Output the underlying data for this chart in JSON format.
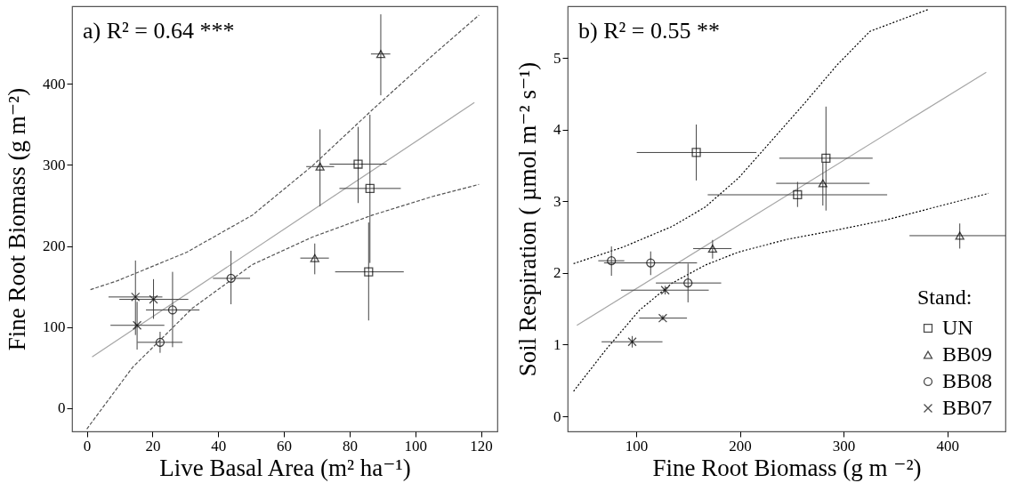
{
  "chart_data": [
    {
      "type": "scatter",
      "xlabel": "Live Basal Area (m² ha⁻¹)",
      "ylabel": "Fine Root Biomass (g m⁻²)",
      "annotations": [
        "a)  R² = 0.64 ***"
      ],
      "xlim": [
        -4.5,
        125
      ],
      "ylim": [
        -29,
        496
      ],
      "xticks": [
        0,
        20,
        40,
        60,
        80,
        100,
        120
      ],
      "yticks": [
        0,
        100,
        200,
        300,
        400
      ],
      "legend": false,
      "series": [
        {
          "marker": "square",
          "color": "#000000",
          "x": [
            82.6,
            86.2,
            85.8
          ],
          "values": [
            301,
            271,
            168
          ],
          "errors": [
            [
              253,
              347
            ],
            [
              179,
              362
            ],
            [
              108,
              229
            ]
          ],
          "xerrors": [
            [
              73.9,
              91.3
            ],
            [
              76.9,
              95.6
            ],
            [
              75.6,
              96.5
            ]
          ]
        },
        {
          "marker": "triangle",
          "color": "#000000",
          "x": [
            89.5,
            71.0,
            69.4
          ],
          "values": [
            437,
            298,
            185
          ],
          "errors": [
            [
              386,
              486
            ],
            [
              249,
              344
            ],
            [
              165,
              203
            ]
          ],
          "xerrors": [
            [
              86.5,
              92.4
            ],
            [
              66.8,
              75.3
            ],
            [
              65.0,
              73.7
            ]
          ]
        },
        {
          "marker": "circle",
          "color": "#000000",
          "x": [
            43.9,
            26.1,
            22.3
          ],
          "values": [
            160,
            121,
            81
          ],
          "errors": [
            [
              128,
              194
            ],
            [
              75,
              168
            ],
            [
              68,
              94
            ]
          ],
          "xerrors": [
            [
              38.4,
              49.7
            ],
            [
              18.0,
              34.3
            ],
            [
              15.4,
              29.1
            ]
          ]
        },
        {
          "marker": "cross",
          "color": "#000000",
          "x": [
            14.8,
            20.3,
            15.3
          ],
          "values": [
            137,
            134,
            102
          ],
          "errors": [
            [
              90,
              182
            ],
            [
              110,
              159
            ],
            [
              72,
              131
            ]
          ],
          "xerrors": [
            [
              6.6,
              23.0
            ],
            [
              9.9,
              30.9
            ],
            [
              7.2,
              23.6
            ]
          ]
        },
        {
          "type": "line",
          "color": "#a6a6a6",
          "line_style": "solid",
          "x": [
            1.6,
            118
          ],
          "values": [
            63,
            377
          ]
        },
        {
          "type": "line",
          "color": "#555555",
          "line_style": "dashed",
          "x": [
            1.1,
            9.3,
            30.3,
            50.4,
            68.7,
            86.9,
            105.2,
            119.4
          ],
          "values": [
            146,
            157,
            192,
            238,
            299,
            368,
            435,
            485
          ]
        },
        {
          "type": "line",
          "color": "#555555",
          "line_style": "dashed",
          "x": [
            0,
            13.9,
            32.1,
            50.4,
            68.7,
            86.9,
            105.2,
            119.4
          ],
          "values": [
            -26,
            50,
            123,
            177,
            211,
            238,
            261,
            276
          ]
        }
      ]
    },
    {
      "type": "scatter",
      "xlabel": "Fine Root Biomass (g m ⁻²)",
      "ylabel": "Soil Respiration ( µmol m⁻² s⁻¹)",
      "annotations": [
        "b)  R² = 0.55 **"
      ],
      "legend_title": "Stand:",
      "xlim": [
        34,
        456
      ],
      "ylim": [
        -0.21,
        5.72
      ],
      "xticks": [
        100,
        200,
        300,
        400
      ],
      "yticks": [
        0,
        1,
        2,
        3,
        4,
        5
      ],
      "legend": "bottom right",
      "series": [
        {
          "name": "UN",
          "marker": "square",
          "color": "#000000",
          "x": [
            158,
            283,
            255.6
          ],
          "values": [
            3.68,
            3.6,
            3.09
          ],
          "errors": [
            [
              3.29,
              4.07
            ],
            [
              2.87,
              4.32
            ],
            [
              2.92,
              3.27
            ]
          ],
          "xerrors": [
            [
              100.6,
              216
            ],
            [
              238,
              328
            ],
            [
              169,
              342
            ]
          ]
        },
        {
          "name": "BB09",
          "marker": "triangle",
          "color": "#000000",
          "x": [
            280,
            412,
            173.7
          ],
          "values": [
            3.25,
            2.52,
            2.34
          ],
          "errors": [
            [
              2.94,
              3.55
            ],
            [
              2.34,
              2.69
            ],
            [
              2.2,
              2.46
            ]
          ],
          "xerrors": [
            [
              235,
              325
            ],
            [
              363.5,
              456
            ],
            [
              155,
              192
            ]
          ]
        },
        {
          "name": "BB08",
          "marker": "circle",
          "color": "#000000",
          "x": [
            76.2,
            114,
            150
          ],
          "values": [
            2.17,
            2.14,
            1.86
          ],
          "errors": [
            [
              1.96,
              2.37
            ],
            [
              1.97,
              2.3
            ],
            [
              1.59,
              2.13
            ]
          ],
          "xerrors": [
            [
              63.5,
              88.6
            ],
            [
              69,
              158.7
            ],
            [
              119,
              182
            ]
          ]
        },
        {
          "name": "BB07",
          "marker": "cross",
          "color": "#000000",
          "x": [
            128,
            125.7,
            96.2
          ],
          "values": [
            1.76,
            1.37,
            1.04
          ],
          "errors": [
            [
              1.7,
              1.82
            ],
            [
              1.34,
              1.41
            ],
            [
              0.96,
              1.12
            ]
          ],
          "xerrors": [
            [
              85.4,
              170
            ],
            [
              103,
              149
            ],
            [
              66.7,
              125.4
            ]
          ]
        },
        {
          "type": "line",
          "color": "#a6a6a6",
          "line_style": "solid",
          "x": [
            42.9,
            437.5
          ],
          "values": [
            1.27,
            4.8
          ]
        },
        {
          "type": "line",
          "color": "#000000",
          "line_style": "dotted",
          "x": [
            39.7,
            87.3,
            134.9,
            166.7,
            198.4,
            230.2,
            261.9,
            293.7,
            325.4,
            382.5
          ],
          "values": [
            2.13,
            2.36,
            2.65,
            2.92,
            3.32,
            3.84,
            4.36,
            4.9,
            5.37,
            5.68
          ]
        },
        {
          "type": "line",
          "color": "#000000",
          "line_style": "dotted",
          "x": [
            39.7,
            71.4,
            103.2,
            134.9,
            166.7,
            198.4,
            246,
            293.7,
            341.3,
            388.9,
            439.7
          ],
          "values": [
            0.35,
            0.94,
            1.48,
            1.86,
            2.11,
            2.29,
            2.47,
            2.6,
            2.74,
            2.92,
            3.11
          ]
        }
      ]
    }
  ]
}
